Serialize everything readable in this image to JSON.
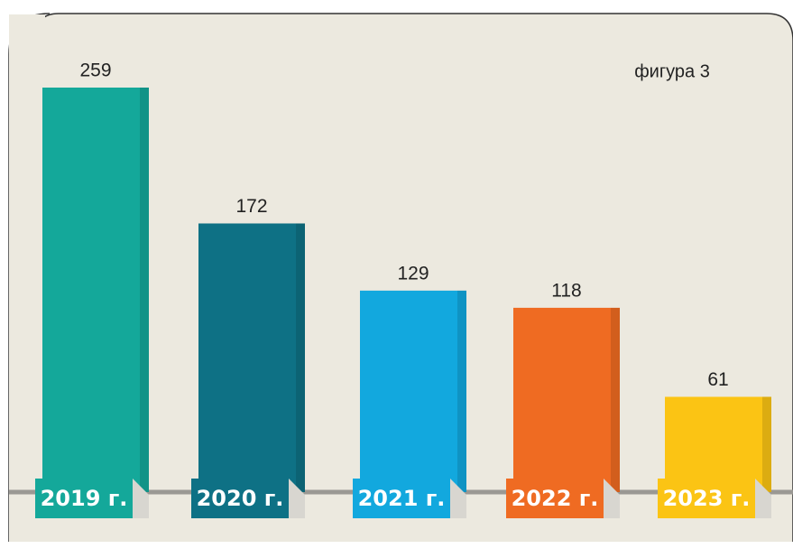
{
  "chart_data": {
    "type": "bar",
    "annotation": "фигура 3",
    "categories": [
      "2019 г.",
      "2020 г.",
      "2021 г.",
      "2022 г.",
      "2023 г."
    ],
    "values": [
      259,
      172,
      129,
      118,
      61
    ],
    "colors": [
      "#14a89a",
      "#0e7185",
      "#12a8de",
      "#ef6b22",
      "#fbc414"
    ]
  }
}
